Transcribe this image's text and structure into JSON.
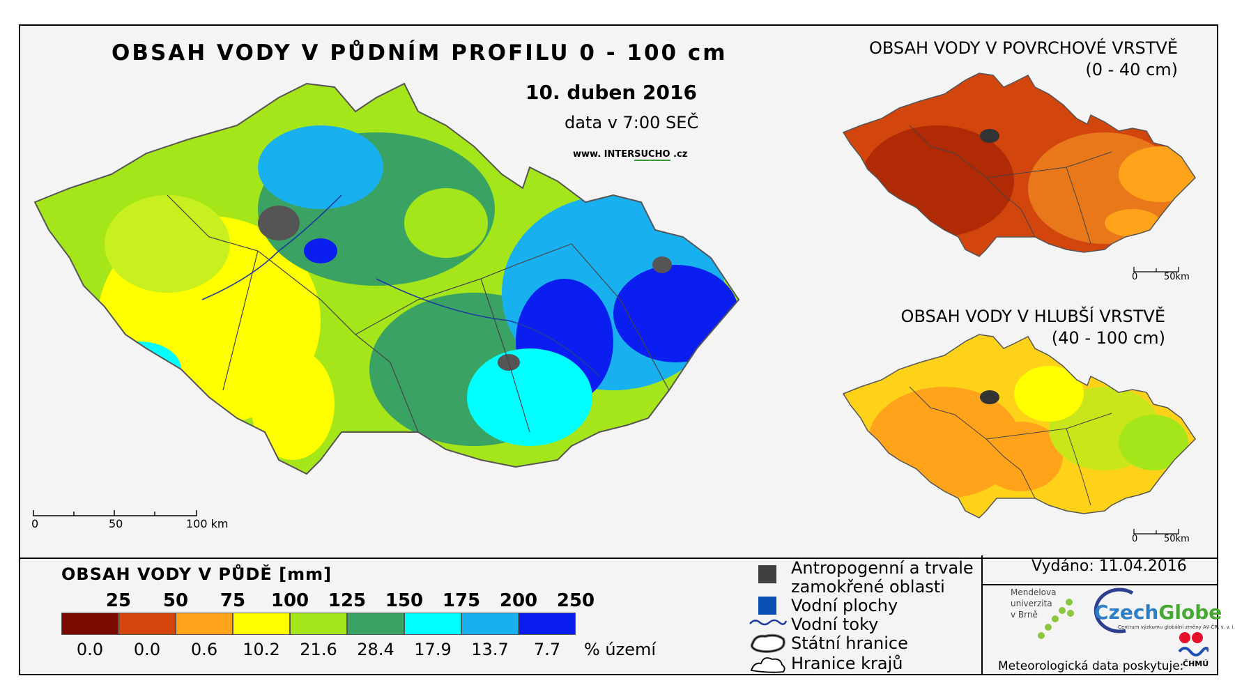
{
  "main_map": {
    "title": "OBSAH VODY V PŮDNÍM PROFILU 0 - 100 cm",
    "date": "10. duben 2016",
    "time": "data v 7:00 SEČ",
    "website_prefix": "www. INTER",
    "website_highlight": "SUCHO",
    "website_suffix": " .cz",
    "scale": {
      "zero": "0",
      "mid": "50",
      "end": "100 km"
    }
  },
  "surface_map": {
    "title": "OBSAH VODY V POVRCHOVÉ VRSTVĚ",
    "subtitle": "(0 - 40 cm)",
    "scale": {
      "zero": "0",
      "end": "50km"
    }
  },
  "deep_map": {
    "title": "OBSAH VODY V HLUBŠÍ VRSTVĚ",
    "subtitle": "(40 - 100 cm)",
    "scale": {
      "zero": "0",
      "end": "50km"
    }
  },
  "legend": {
    "title": "OBSAH VODY V PŮDĚ [mm]",
    "unit": "% území",
    "classes": [
      {
        "upper": "25",
        "pct": "0.0",
        "color": "#7a0a00"
      },
      {
        "upper": "50",
        "pct": "0.0",
        "color": "#d2450d"
      },
      {
        "upper": "75",
        "pct": "0.6",
        "color": "#ffa31a"
      },
      {
        "upper": "100",
        "pct": "10.2",
        "color": "#ffff00"
      },
      {
        "upper": "125",
        "pct": "21.6",
        "color": "#a5e61a"
      },
      {
        "upper": "150",
        "pct": "28.4",
        "color": "#3aa364"
      },
      {
        "upper": "175",
        "pct": "17.9",
        "color": "#00ffff"
      },
      {
        "upper": "200",
        "pct": "13.7",
        "color": "#19b0f0"
      },
      {
        "upper": "250",
        "pct": "7.7",
        "color": "#0a1ef0"
      }
    ],
    "symbols": {
      "anthropogenic": "Antropogenní a trvale",
      "anthropogenic_2": "zamokřené oblasti",
      "water_bodies": "Vodní plochy",
      "rivers": "Vodní toky",
      "state_border": "Státní hranice",
      "region_border": "Hranice krajů"
    }
  },
  "footer": {
    "issued": "Vydáno: 11.04.2016",
    "mendel": "Mendelova\nuniverzita\nv Brně",
    "czechglobe_a": "Czech",
    "czechglobe_b": "Globe",
    "czechglobe_sub": "Centrum výzkumu globální změny AV ČR, v. v. i.",
    "data_provider": "Meteorologická data poskytuje:",
    "chmu": "ČHMÚ"
  }
}
